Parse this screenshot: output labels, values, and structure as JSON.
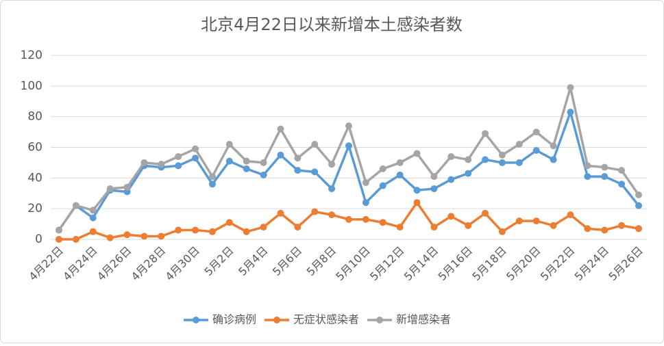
{
  "chart_data": {
    "type": "line",
    "title": "北京4月22日以来新增本土感染者数",
    "categories": [
      "4月22日",
      null,
      "4月24日",
      null,
      "4月26日",
      null,
      "4月28日",
      null,
      "4月30日",
      null,
      "5月2日",
      null,
      "5月4日",
      null,
      "5月6日",
      null,
      "5月8日",
      null,
      "5月10日",
      null,
      "5月12日",
      null,
      "5月14日",
      null,
      "5月16日",
      null,
      "5月18日",
      null,
      "5月20日",
      null,
      "5月22日",
      null,
      "5月24日",
      null,
      "5月26日"
    ],
    "series": [
      {
        "name": "确诊病例",
        "color": "#5b9bd5",
        "values": [
          6,
          22,
          14,
          32,
          31,
          48,
          47,
          48,
          53,
          36,
          51,
          46,
          42,
          55,
          45,
          44,
          33,
          61,
          24,
          35,
          42,
          32,
          33,
          39,
          43,
          52,
          50,
          50,
          58,
          52,
          83,
          41,
          41,
          36,
          22
        ]
      },
      {
        "name": "无症状感染者",
        "color": "#ed7d31",
        "values": [
          0,
          0,
          5,
          1,
          3,
          2,
          2,
          6,
          6,
          5,
          11,
          5,
          8,
          17,
          8,
          18,
          16,
          13,
          13,
          11,
          8,
          24,
          8,
          15,
          9,
          17,
          5,
          12,
          12,
          9,
          16,
          7,
          6,
          9,
          7
        ]
      },
      {
        "name": "新增感染者",
        "color": "#a5a5a5",
        "values": [
          6,
          22,
          19,
          33,
          34,
          50,
          49,
          54,
          59,
          41,
          62,
          51,
          50,
          72,
          53,
          62,
          49,
          74,
          37,
          46,
          50,
          56,
          41,
          54,
          52,
          69,
          55,
          62,
          70,
          61,
          99,
          48,
          47,
          45,
          29
        ]
      }
    ],
    "ylim": [
      0,
      120
    ],
    "yticks": [
      0,
      20,
      40,
      60,
      80,
      100,
      120
    ],
    "grid": true,
    "legend": "bottom"
  }
}
